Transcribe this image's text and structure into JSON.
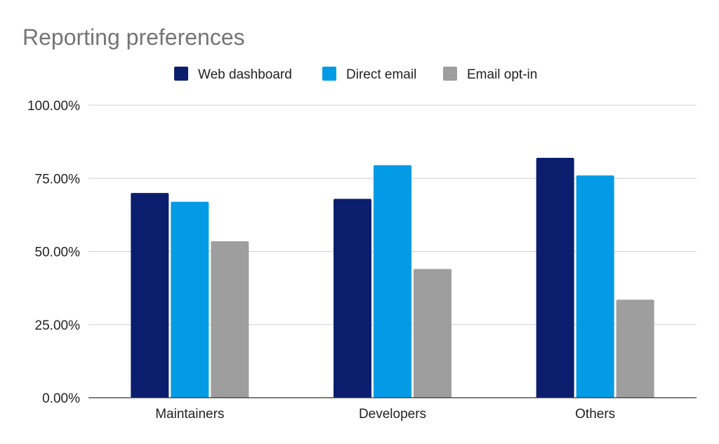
{
  "chart_data": {
    "type": "bar",
    "title": "Reporting preferences",
    "xlabel": "",
    "ylabel": "",
    "categories": [
      "Maintainers",
      "Developers",
      "Others"
    ],
    "series": [
      {
        "name": "Web dashboard",
        "color": "#0b1e6e",
        "values": [
          0.7,
          0.68,
          0.82
        ]
      },
      {
        "name": "Direct email",
        "color": "#039be5",
        "values": [
          0.67,
          0.795,
          0.76
        ]
      },
      {
        "name": "Email opt-in",
        "color": "#9e9e9e",
        "values": [
          0.535,
          0.44,
          0.335
        ]
      }
    ],
    "ylim": [
      0,
      1
    ],
    "yticks": [
      0,
      0.25,
      0.5,
      0.75,
      1.0
    ],
    "ytick_labels": [
      "0.00%",
      "25.00%",
      "50.00%",
      "75.00%",
      "100.00%"
    ],
    "grid": true,
    "legend_position": "top"
  }
}
